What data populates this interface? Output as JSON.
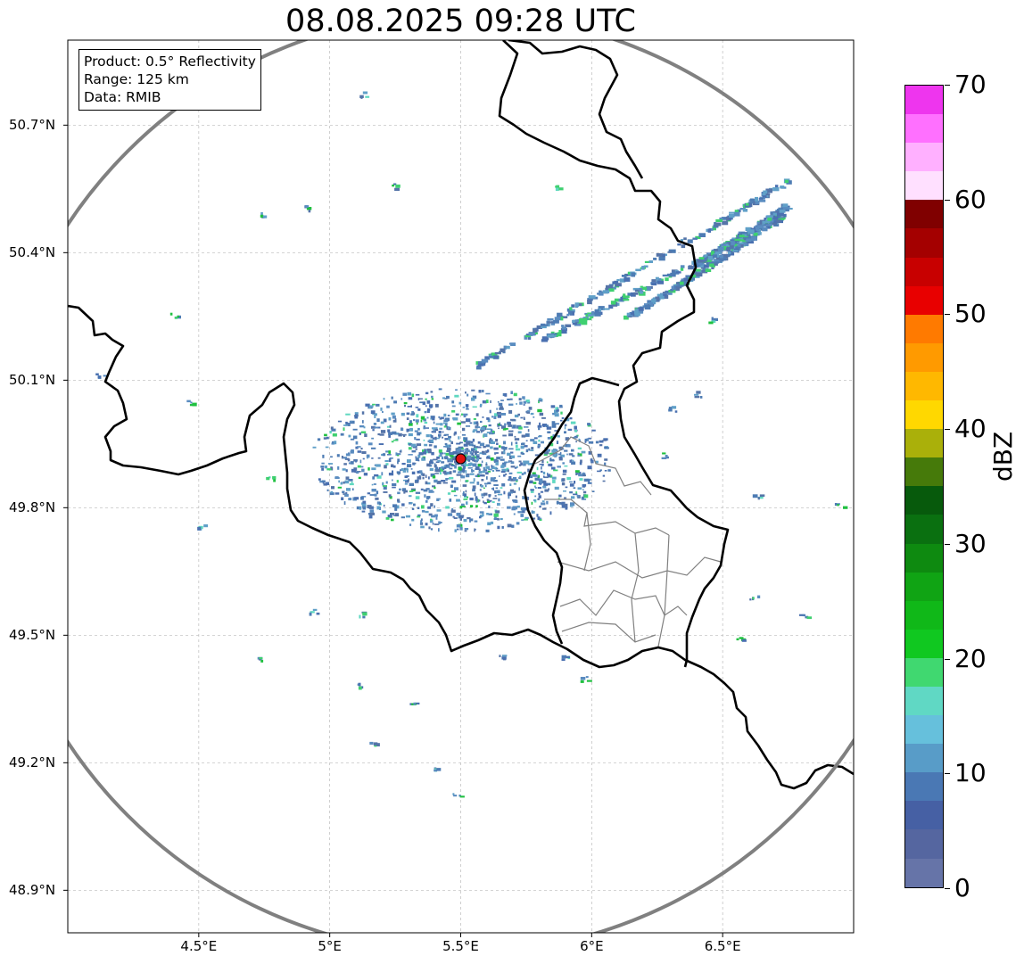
{
  "title": "08.08.2025 09:28 UTC",
  "info_box": {
    "product": "Product: 0.5° Reflectivity",
    "range": "Range: 125 km",
    "data": "Data: RMIB"
  },
  "map": {
    "extent": {
      "lon_min": 4.0,
      "lon_max": 7.0,
      "lat_min": 48.8,
      "lat_max": 50.9
    },
    "radar_site": {
      "lon": 5.5,
      "lat": 49.915,
      "marker_color": "#e01010"
    },
    "range_ring_color": "#808080",
    "lat_ticks": [
      {
        "value": 50.7,
        "label": "50.7°N"
      },
      {
        "value": 50.4,
        "label": "50.4°N"
      },
      {
        "value": 50.1,
        "label": "50.1°N"
      },
      {
        "value": 49.8,
        "label": "49.8°N"
      },
      {
        "value": 49.5,
        "label": "49.5°N"
      },
      {
        "value": 49.2,
        "label": "49.2°N"
      },
      {
        "value": 48.9,
        "label": "48.9°N"
      }
    ],
    "lon_ticks": [
      {
        "value": 4.5,
        "label": "4.5°E"
      },
      {
        "value": 5.0,
        "label": "5°E"
      },
      {
        "value": 5.5,
        "label": "5.5°E"
      },
      {
        "value": 6.0,
        "label": "6°E"
      },
      {
        "value": 6.5,
        "label": "6.5°E"
      }
    ]
  },
  "colorbar": {
    "unit": "dBZ",
    "min": 0,
    "max": 70,
    "tick_values": [
      {
        "value": 0,
        "label": "0"
      },
      {
        "value": 10,
        "label": "10"
      },
      {
        "value": 20,
        "label": "20"
      },
      {
        "value": 30,
        "label": "30"
      },
      {
        "value": 40,
        "label": "40"
      },
      {
        "value": 50,
        "label": "50"
      },
      {
        "value": 60,
        "label": "60"
      },
      {
        "value": 70,
        "label": "70"
      }
    ],
    "colors": [
      "#6674a8",
      "#5566a0",
      "#4660a4",
      "#4a78b4",
      "#589cc8",
      "#66c0dc",
      "#60d8c4",
      "#40d870",
      "#10c820",
      "#10b818",
      "#10a414",
      "#0e8a10",
      "#0a7010",
      "#075a0c",
      "#467a0a",
      "#aab00a",
      "#ffd800",
      "#ffb800",
      "#ff9a00",
      "#ff7a00",
      "#e80000",
      "#c80000",
      "#a40000",
      "#800000",
      "#ffe0ff",
      "#ffb0ff",
      "#ff70ff",
      "#ee35ee"
    ]
  }
}
